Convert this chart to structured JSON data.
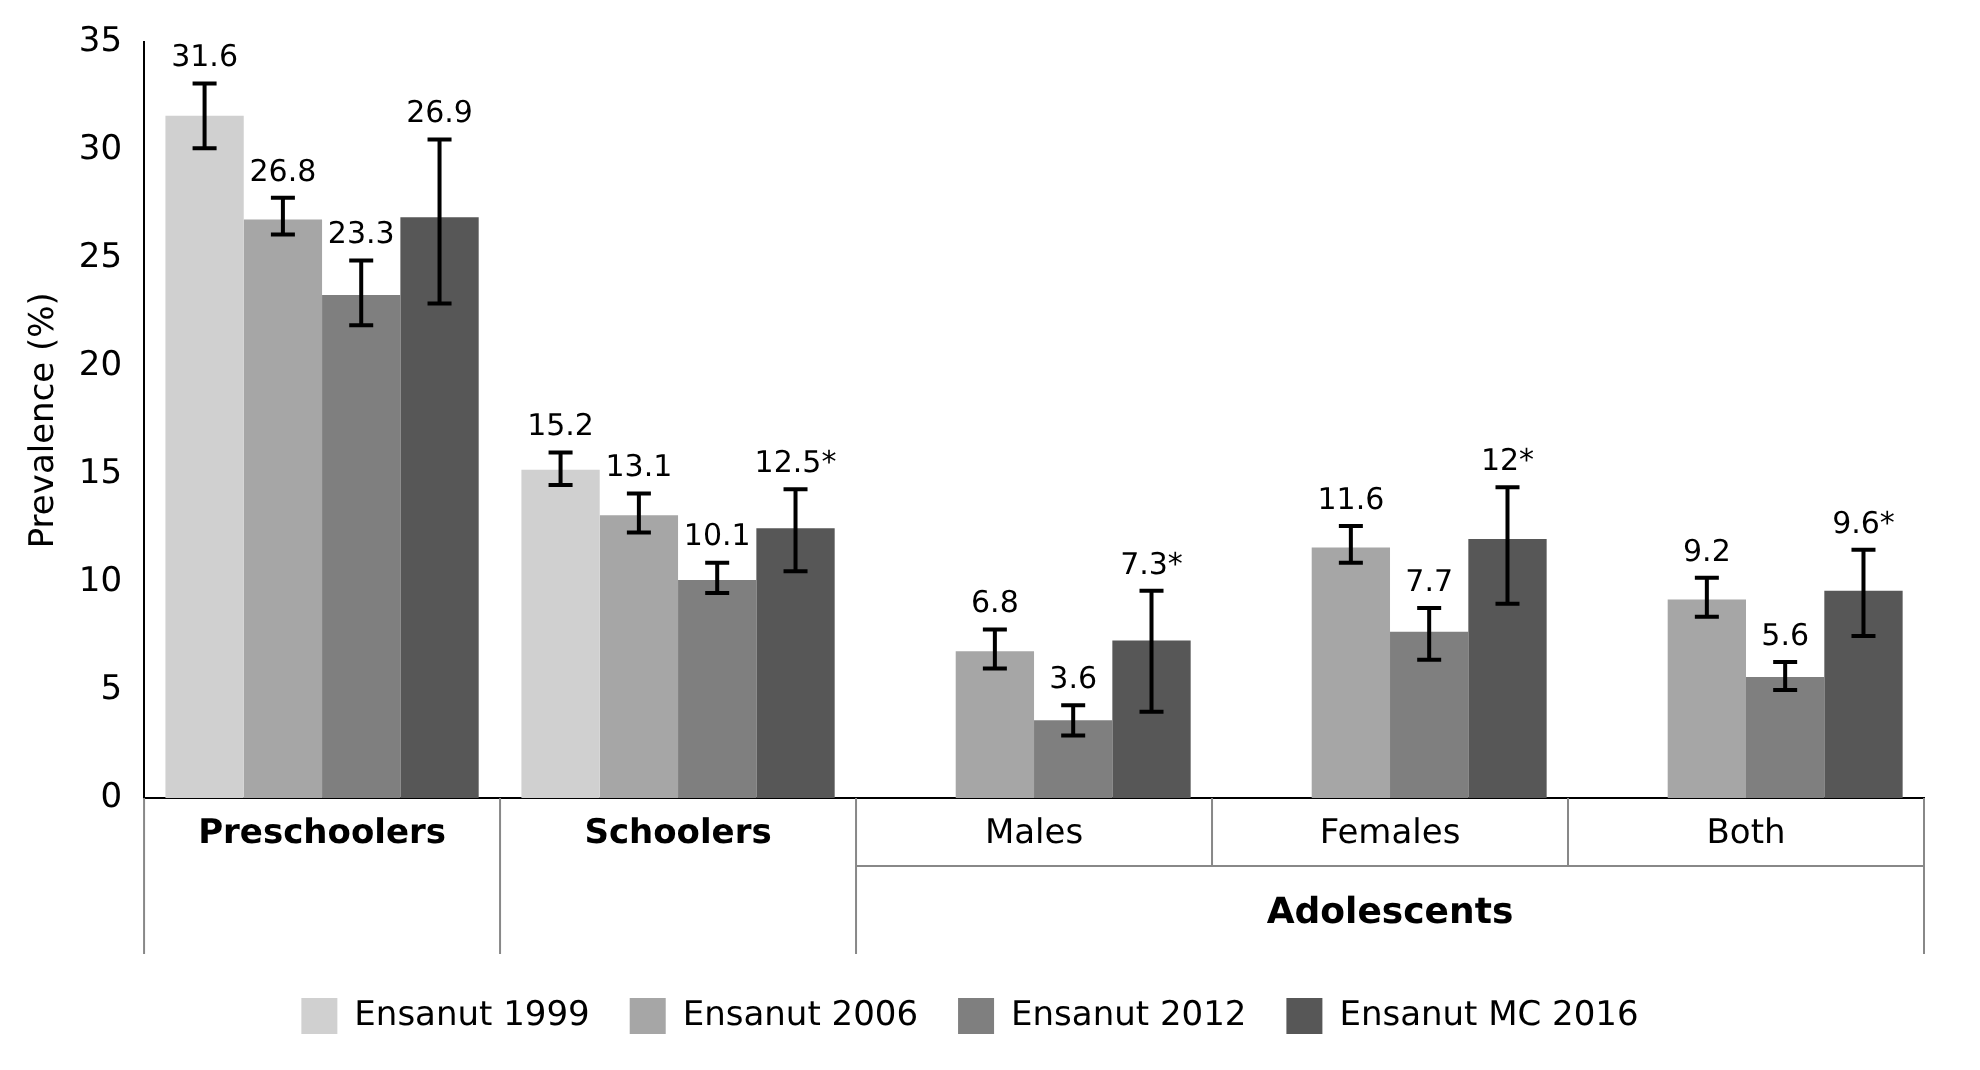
{
  "chart_data": {
    "type": "bar",
    "ylabel": "Prevalence (%)",
    "categories": [
      "Preschoolers",
      "Schoolers",
      "Males",
      "Females",
      "Both"
    ],
    "series": [
      {
        "name": "Ensanut 1999",
        "color": "#d0d0d0",
        "values": [
          31.6,
          15.2,
          null,
          null,
          null
        ],
        "value_labels": [
          "31.6",
          "15.2",
          null,
          null,
          null
        ],
        "errors": [
          [
            30.1,
            33.1
          ],
          [
            14.5,
            16.0
          ],
          null,
          null,
          null
        ]
      },
      {
        "name": "Ensanut 2006",
        "color": "#a6a6a6",
        "values": [
          26.8,
          13.1,
          6.8,
          11.6,
          9.2
        ],
        "value_labels": [
          "26.8",
          "13.1",
          "6.8",
          "11.6",
          "9.2"
        ],
        "errors": [
          [
            26.1,
            27.8
          ],
          [
            12.3,
            14.1
          ],
          [
            6.0,
            7.8
          ],
          [
            10.9,
            12.6
          ],
          [
            8.4,
            10.2
          ]
        ]
      },
      {
        "name": "Ensanut 2012",
        "color": "#7f7f7f",
        "values": [
          23.3,
          10.1,
          3.6,
          7.7,
          5.6
        ],
        "value_labels": [
          "23.3",
          "10.1",
          "3.6",
          "7.7",
          "5.6"
        ],
        "errors": [
          [
            21.9,
            24.9
          ],
          [
            9.5,
            10.9
          ],
          [
            2.9,
            4.3
          ],
          [
            6.4,
            8.8
          ],
          [
            5.0,
            6.3
          ]
        ]
      },
      {
        "name": "Ensanut MC 2016",
        "color": "#575757",
        "values": [
          26.9,
          12.5,
          7.3,
          12,
          9.6
        ],
        "value_labels": [
          "26.9",
          "12.5*",
          "7.3*",
          "12*",
          "9.6*"
        ],
        "errors": [
          [
            22.9,
            30.5
          ],
          [
            10.5,
            14.3
          ],
          [
            4.0,
            9.6
          ],
          [
            9.0,
            14.4
          ],
          [
            7.5,
            11.5
          ]
        ]
      }
    ],
    "annotations": [
      "Adolescents"
    ],
    "ylim": [
      0,
      35
    ],
    "yticks": [
      0,
      5,
      10,
      15,
      20,
      25,
      30,
      35
    ],
    "grid": false,
    "legend": "bottom"
  }
}
